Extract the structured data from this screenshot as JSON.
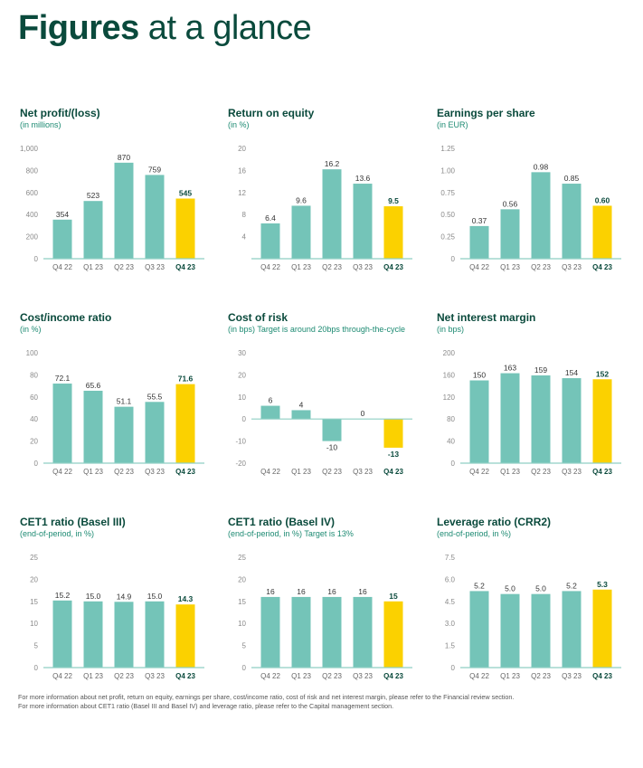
{
  "page": {
    "title_bold": "Figures",
    "title_rest": " at a glance",
    "footnotes": [
      "For more information about net profit, return on equity, earnings per share, cost/income ratio, cost of risk and net interest margin, please refer to the Financial review section.",
      "For more information about CET1 ratio (Basel III and Basel IV) and leverage ratio, please refer to the Capital management section."
    ]
  },
  "colors": {
    "bar": "#74c4b8",
    "highlight": "#fbd100",
    "axis": "#8fcfc4",
    "tick": "#8a8a8a",
    "label": "#333333"
  },
  "chart_data": [
    {
      "type": "bar",
      "title": "Net profit/(loss)",
      "subtitle": "(in millions)",
      "categories": [
        "Q4 22",
        "Q1 23",
        "Q2 23",
        "Q3 23",
        "Q4 23"
      ],
      "values": [
        354,
        523,
        870,
        759,
        545
      ],
      "labels": [
        "354",
        "523",
        "870",
        "759",
        "545"
      ],
      "ylim": [
        0,
        1000
      ],
      "yticks": [
        "0",
        "200",
        "400",
        "600",
        "800",
        "1,000"
      ],
      "ytick_values": [
        0,
        200,
        400,
        600,
        800,
        1000
      ],
      "highlight_index": 4
    },
    {
      "type": "bar",
      "title": "Return on equity",
      "subtitle": "(in %)",
      "categories": [
        "Q4 22",
        "Q1 23",
        "Q2 23",
        "Q3 23",
        "Q4 23"
      ],
      "values": [
        6.4,
        9.6,
        16.2,
        13.6,
        9.5
      ],
      "labels": [
        "6.4",
        "9.6",
        "16.2",
        "13.6",
        "9.5"
      ],
      "ylim": [
        0,
        20
      ],
      "yticks": [
        "4",
        "8",
        "12",
        "16",
        "20"
      ],
      "ytick_values": [
        4,
        8,
        12,
        16,
        20
      ],
      "highlight_index": 4
    },
    {
      "type": "bar",
      "title": "Earnings per share",
      "subtitle": "(in EUR)",
      "categories": [
        "Q4 22",
        "Q1 23",
        "Q2 23",
        "Q3 23",
        "Q4 23"
      ],
      "values": [
        0.37,
        0.56,
        0.98,
        0.85,
        0.6
      ],
      "labels": [
        "0.37",
        "0.56",
        "0.98",
        "0.85",
        "0.60"
      ],
      "ylim": [
        0,
        1.25
      ],
      "yticks": [
        "0",
        "0.25",
        "0.50",
        "0.75",
        "1.00",
        "1.25"
      ],
      "ytick_values": [
        0,
        0.25,
        0.5,
        0.75,
        1.0,
        1.25
      ],
      "highlight_index": 4
    },
    {
      "type": "bar",
      "title": "Cost/income ratio",
      "subtitle": "(in %)",
      "categories": [
        "Q4 22",
        "Q1 23",
        "Q2 23",
        "Q3 23",
        "Q4 23"
      ],
      "values": [
        72.1,
        65.6,
        51.1,
        55.5,
        71.6
      ],
      "labels": [
        "72.1",
        "65.6",
        "51.1",
        "55.5",
        "71.6"
      ],
      "ylim": [
        0,
        100
      ],
      "yticks": [
        "0",
        "20",
        "40",
        "60",
        "80",
        "100"
      ],
      "ytick_values": [
        0,
        20,
        40,
        60,
        80,
        100
      ],
      "highlight_index": 4
    },
    {
      "type": "bar",
      "title": "Cost of risk",
      "subtitle": "(in bps) Target is around 20bps through-the-cycle",
      "categories": [
        "Q4 22",
        "Q1 23",
        "Q2 23",
        "Q3 23",
        "Q4 23"
      ],
      "values": [
        6,
        4,
        -10,
        0,
        -13
      ],
      "labels": [
        "6",
        "4",
        "-10",
        "0",
        "-13"
      ],
      "ylim": [
        -20,
        30
      ],
      "yticks": [
        "-20",
        "-10",
        "0",
        "10",
        "20",
        "30"
      ],
      "ytick_values": [
        -20,
        -10,
        0,
        10,
        20,
        30
      ],
      "highlight_index": 4
    },
    {
      "type": "bar",
      "title": "Net interest margin",
      "subtitle": "(in bps)",
      "categories": [
        "Q4 22",
        "Q1 23",
        "Q2 23",
        "Q3 23",
        "Q4 23"
      ],
      "values": [
        150,
        163,
        159,
        154,
        152
      ],
      "labels": [
        "150",
        "163",
        "159",
        "154",
        "152"
      ],
      "ylim": [
        0,
        200
      ],
      "yticks": [
        "0",
        "40",
        "80",
        "120",
        "160",
        "200"
      ],
      "ytick_values": [
        0,
        40,
        80,
        120,
        160,
        200
      ],
      "highlight_index": 4
    },
    {
      "type": "bar",
      "title": "CET1 ratio (Basel III)",
      "subtitle": "(end-of-period, in %)",
      "categories": [
        "Q4 22",
        "Q1 23",
        "Q2 23",
        "Q3 23",
        "Q4 23"
      ],
      "values": [
        15.2,
        15.0,
        14.9,
        15.0,
        14.3
      ],
      "labels": [
        "15.2",
        "15.0",
        "14.9",
        "15.0",
        "14.3"
      ],
      "ylim": [
        0,
        25
      ],
      "yticks": [
        "0",
        "5",
        "10",
        "15",
        "20",
        "25"
      ],
      "ytick_values": [
        0,
        5,
        10,
        15,
        20,
        25
      ],
      "highlight_index": 4
    },
    {
      "type": "bar",
      "title": "CET1 ratio (Basel IV)",
      "subtitle": "(end-of-period, in %) Target is 13%",
      "categories": [
        "Q4 22",
        "Q1 23",
        "Q2 23",
        "Q3 23",
        "Q4 23"
      ],
      "values": [
        16,
        16,
        16,
        16,
        15
      ],
      "labels": [
        "16",
        "16",
        "16",
        "16",
        "15"
      ],
      "ylim": [
        0,
        25
      ],
      "yticks": [
        "0",
        "5",
        "10",
        "15",
        "20",
        "25"
      ],
      "ytick_values": [
        0,
        5,
        10,
        15,
        20,
        25
      ],
      "highlight_index": 4
    },
    {
      "type": "bar",
      "title": "Leverage ratio (CRR2)",
      "subtitle": "(end-of-period, in %)",
      "categories": [
        "Q4 22",
        "Q1 23",
        "Q2 23",
        "Q3 23",
        "Q4 23"
      ],
      "values": [
        5.2,
        5.0,
        5.0,
        5.2,
        5.3
      ],
      "labels": [
        "5.2",
        "5.0",
        "5.0",
        "5.2",
        "5.3"
      ],
      "ylim": [
        0,
        7.5
      ],
      "yticks": [
        "0",
        "1.5",
        "3.0",
        "4.5",
        "6.0",
        "7.5"
      ],
      "ytick_values": [
        0,
        1.5,
        3.0,
        4.5,
        6.0,
        7.5
      ],
      "highlight_index": 4
    }
  ]
}
